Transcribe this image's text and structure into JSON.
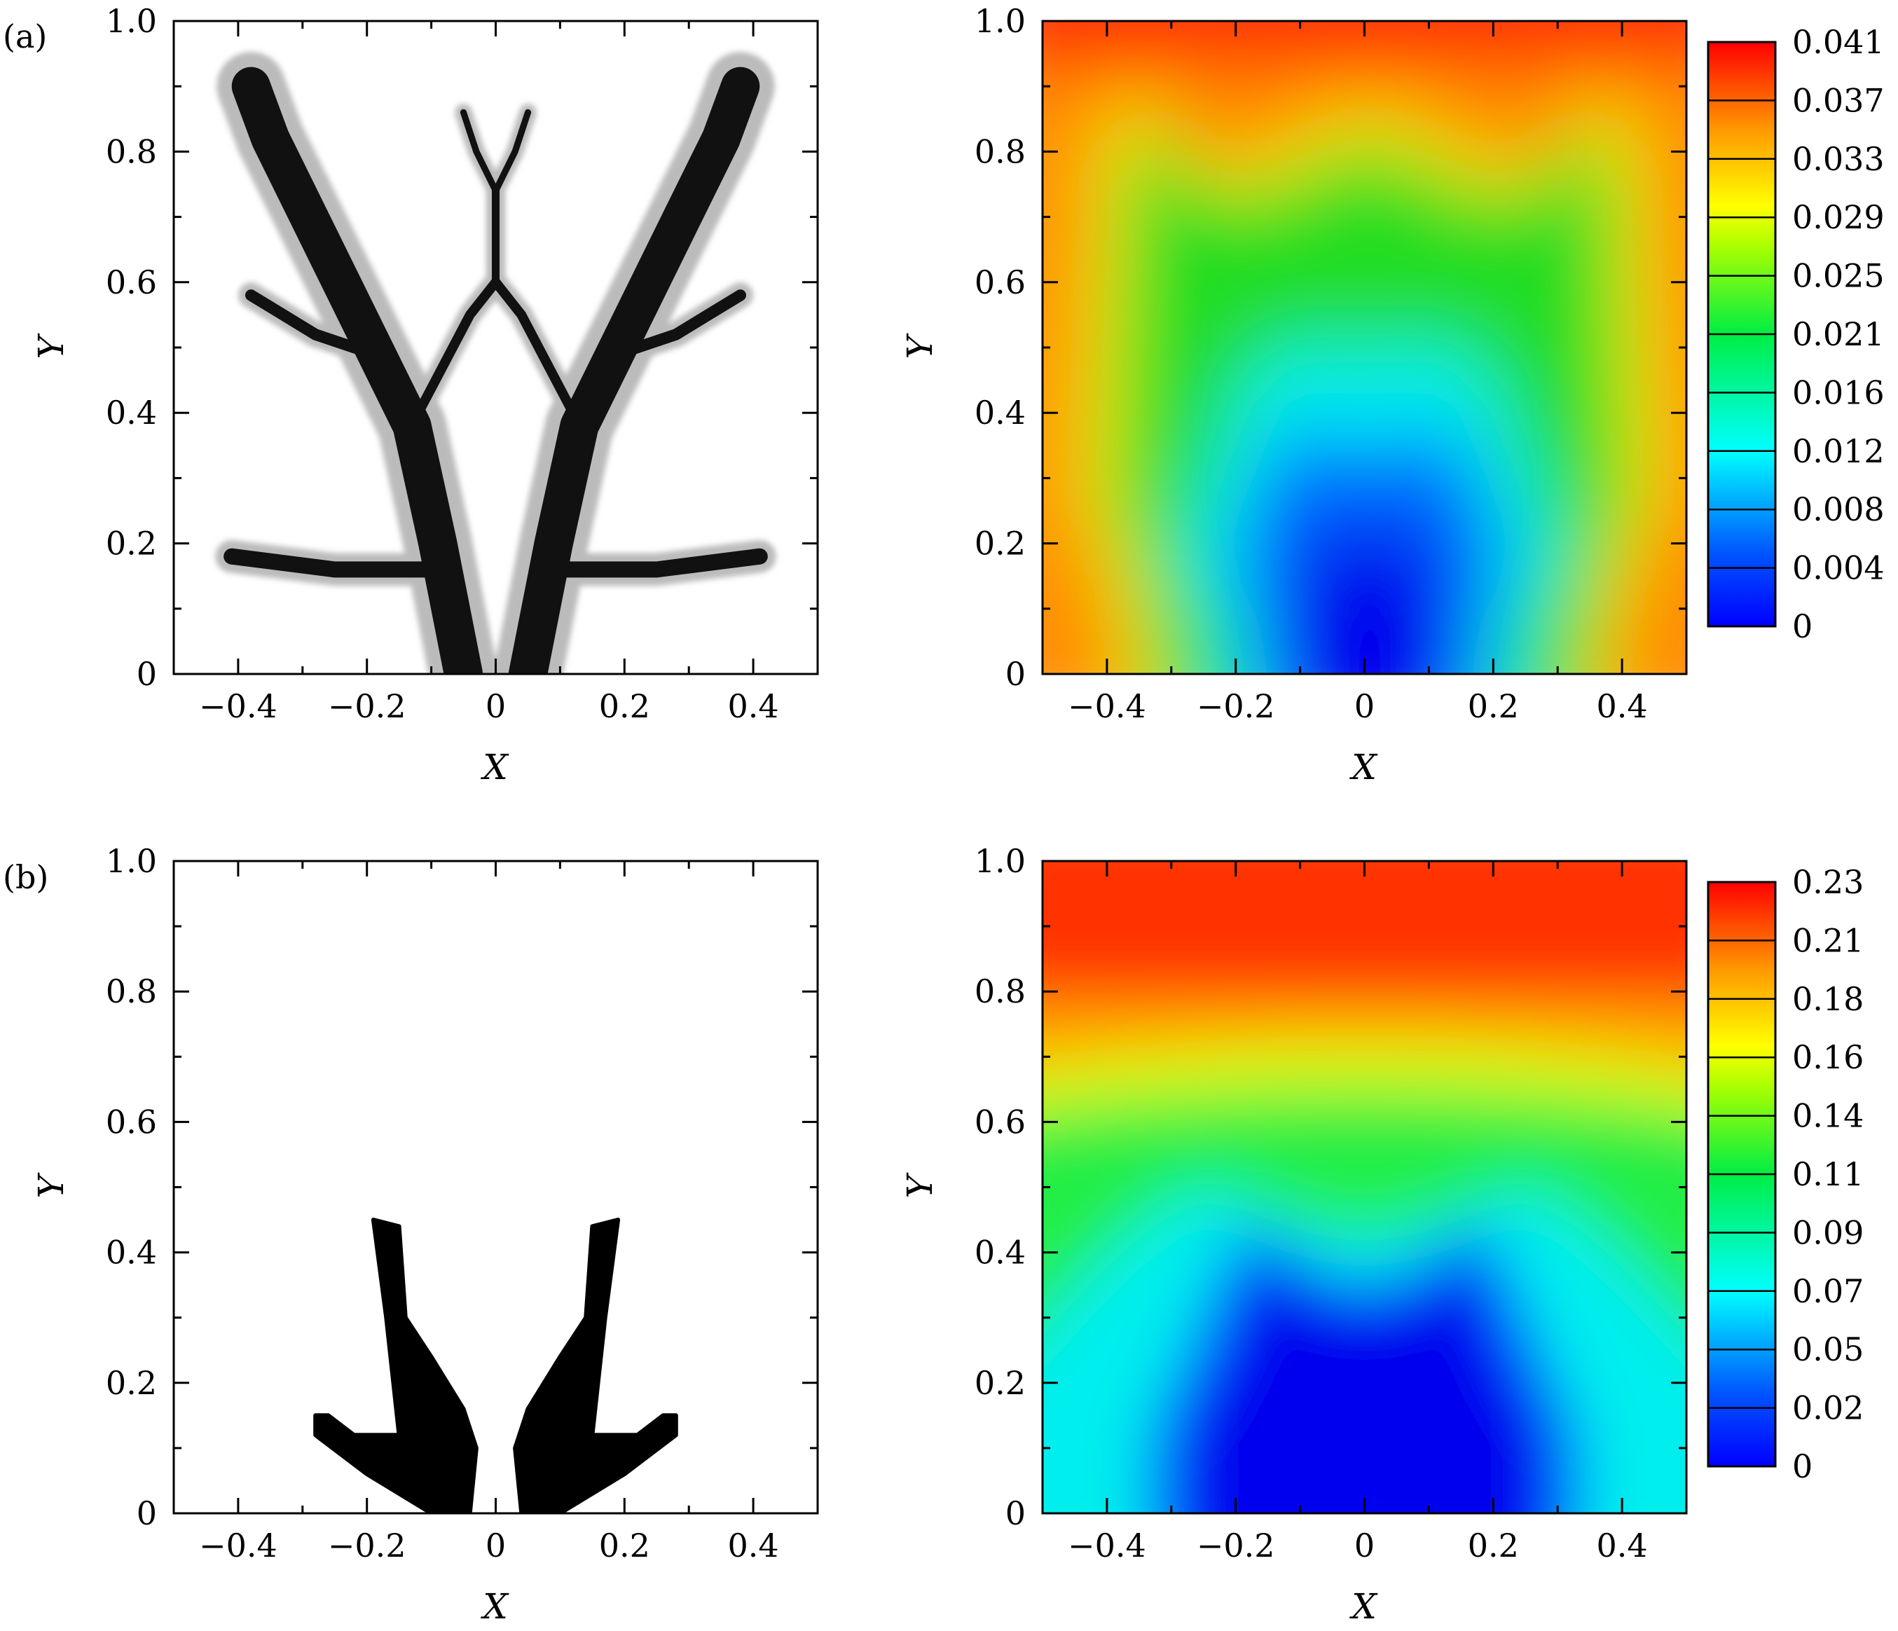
{
  "figure": {
    "panels": [
      {
        "label": "(a)"
      },
      {
        "label": "(b)"
      }
    ]
  },
  "chart_data": [
    {
      "type": "heatmap",
      "panel": "(a)",
      "subplot": "density",
      "xlabel": "X",
      "ylabel": "Y",
      "xlim": [
        -0.5,
        0.5
      ],
      "ylim": [
        0,
        1.0
      ],
      "xticks": [
        "−0.4",
        "−0.2",
        "0",
        "0.2",
        "0.4"
      ],
      "xtick_values": [
        -0.4,
        -0.2,
        0,
        0.2,
        0.4
      ],
      "yticks": [
        "0",
        "0.2",
        "0.4",
        "0.6",
        "0.8",
        "1.0"
      ],
      "ytick_values": [
        0,
        0.2,
        0.4,
        0.6,
        0.8,
        1.0
      ],
      "colormap": "grayscale (white = void, black = solid material)",
      "structure": [
        {
          "name": "left trunk",
          "points": [
            [
              -0.05,
              0
            ],
            [
              -0.09,
              0.2
            ],
            [
              -0.13,
              0.38
            ],
            [
              -0.2,
              0.52
            ],
            [
              -0.29,
              0.7
            ],
            [
              -0.35,
              0.82
            ],
            [
              -0.38,
              0.9
            ]
          ],
          "width": 0.06
        },
        {
          "name": "right trunk",
          "points": [
            [
              0.05,
              0
            ],
            [
              0.09,
              0.2
            ],
            [
              0.13,
              0.38
            ],
            [
              0.2,
              0.52
            ],
            [
              0.29,
              0.7
            ],
            [
              0.35,
              0.82
            ],
            [
              0.38,
              0.9
            ]
          ],
          "width": 0.06
        },
        {
          "name": "left lower branch",
          "points": [
            [
              -0.09,
              0.16
            ],
            [
              -0.25,
              0.16
            ],
            [
              -0.41,
              0.18
            ]
          ],
          "width": 0.025
        },
        {
          "name": "right lower branch",
          "points": [
            [
              0.09,
              0.16
            ],
            [
              0.25,
              0.16
            ],
            [
              0.41,
              0.18
            ]
          ],
          "width": 0.025
        },
        {
          "name": "left upper branch",
          "points": [
            [
              -0.19,
              0.49
            ],
            [
              -0.28,
              0.52
            ],
            [
              -0.38,
              0.58
            ]
          ],
          "width": 0.018
        },
        {
          "name": "right upper branch",
          "points": [
            [
              0.19,
              0.49
            ],
            [
              0.28,
              0.52
            ],
            [
              0.38,
              0.58
            ]
          ],
          "width": 0.018
        },
        {
          "name": "left inner branch",
          "points": [
            [
              -0.12,
              0.4
            ],
            [
              -0.04,
              0.55
            ],
            [
              0,
              0.6
            ]
          ],
          "width": 0.015
        },
        {
          "name": "right inner branch",
          "points": [
            [
              0.12,
              0.4
            ],
            [
              0.04,
              0.55
            ],
            [
              0,
              0.6
            ]
          ],
          "width": 0.015
        },
        {
          "name": "central stem",
          "points": [
            [
              0,
              0.6
            ],
            [
              0,
              0.74
            ]
          ],
          "width": 0.012
        },
        {
          "name": "top left twig",
          "points": [
            [
              0,
              0.74
            ],
            [
              -0.03,
              0.8
            ],
            [
              -0.05,
              0.86
            ]
          ],
          "width": 0.01
        },
        {
          "name": "top right twig",
          "points": [
            [
              0,
              0.74
            ],
            [
              0.03,
              0.8
            ],
            [
              0.05,
              0.86
            ]
          ],
          "width": 0.01
        }
      ]
    },
    {
      "type": "heatmap",
      "panel": "(a)",
      "subplot": "field",
      "xlabel": "X",
      "ylabel": "Y",
      "xlim": [
        -0.5,
        0.5
      ],
      "ylim": [
        0,
        1.0
      ],
      "xticks": [
        "−0.4",
        "−0.2",
        "0",
        "0.2",
        "0.4"
      ],
      "xtick_values": [
        -0.4,
        -0.2,
        0,
        0.2,
        0.4
      ],
      "yticks": [
        "0",
        "0.2",
        "0.4",
        "0.6",
        "0.8",
        "1.0"
      ],
      "ytick_values": [
        0,
        0.2,
        0.4,
        0.6,
        0.8,
        1.0
      ],
      "colormap": "jet",
      "colorbar": {
        "ticks": [
          "0.041",
          "0.037",
          "0.033",
          "0.029",
          "0.025",
          "0.021",
          "0.016",
          "0.012",
          "0.008",
          "0.004",
          "0"
        ],
        "min": 0,
        "max": 0.041
      },
      "field_description": "minimum near bottom centre and around the tree branches, maximum along top edge",
      "values_normalized": {
        "centre_bottom": 0.0,
        "lower_branch_region": 0.25,
        "mid_interior": 0.45,
        "upper_interior": 0.55,
        "side_edges": 0.78,
        "top_edge": 1.0
      }
    },
    {
      "type": "heatmap",
      "panel": "(b)",
      "subplot": "density",
      "xlabel": "X",
      "ylabel": "Y",
      "xlim": [
        -0.5,
        0.5
      ],
      "ylim": [
        0,
        1.0
      ],
      "xticks": [
        "−0.4",
        "−0.2",
        "0",
        "0.2",
        "0.4"
      ],
      "xtick_values": [
        -0.4,
        -0.2,
        0,
        0.2,
        0.4
      ],
      "yticks": [
        "0",
        "0.2",
        "0.4",
        "0.6",
        "0.8",
        "1.0"
      ],
      "ytick_values": [
        0,
        0.2,
        0.4,
        0.6,
        0.8,
        1.0
      ],
      "colormap": "binary (white = void, black = solid material)",
      "structure": [
        {
          "name": "left body",
          "polygon": [
            [
              -0.1,
              0
            ],
            [
              -0.04,
              0
            ],
            [
              -0.03,
              0.1
            ],
            [
              -0.05,
              0.16
            ],
            [
              -0.1,
              0.24
            ],
            [
              -0.14,
              0.3
            ],
            [
              -0.15,
              0.44
            ],
            [
              -0.19,
              0.45
            ],
            [
              -0.17,
              0.3
            ],
            [
              -0.15,
              0.12
            ],
            [
              -0.22,
              0.12
            ],
            [
              -0.26,
              0.15
            ],
            [
              -0.28,
              0.15
            ],
            [
              -0.28,
              0.12
            ],
            [
              -0.2,
              0.06
            ]
          ]
        },
        {
          "name": "right body",
          "polygon": [
            [
              0.1,
              0
            ],
            [
              0.04,
              0
            ],
            [
              0.03,
              0.1
            ],
            [
              0.05,
              0.16
            ],
            [
              0.1,
              0.24
            ],
            [
              0.14,
              0.3
            ],
            [
              0.15,
              0.44
            ],
            [
              0.19,
              0.45
            ],
            [
              0.17,
              0.3
            ],
            [
              0.15,
              0.12
            ],
            [
              0.22,
              0.12
            ],
            [
              0.26,
              0.15
            ],
            [
              0.28,
              0.15
            ],
            [
              0.28,
              0.12
            ],
            [
              0.2,
              0.06
            ]
          ]
        }
      ]
    },
    {
      "type": "heatmap",
      "panel": "(b)",
      "subplot": "field",
      "xlabel": "X",
      "ylabel": "Y",
      "xlim": [
        -0.5,
        0.5
      ],
      "ylim": [
        0,
        1.0
      ],
      "xticks": [
        "−0.4",
        "−0.2",
        "0",
        "0.2",
        "0.4"
      ],
      "xtick_values": [
        -0.4,
        -0.2,
        0,
        0.2,
        0.4
      ],
      "yticks": [
        "0",
        "0.2",
        "0.4",
        "0.6",
        "0.8",
        "1.0"
      ],
      "ytick_values": [
        0,
        0.2,
        0.4,
        0.6,
        0.8,
        1.0
      ],
      "colormap": "jet",
      "colorbar": {
        "ticks": [
          "0.23",
          "0.21",
          "0.18",
          "0.16",
          "0.14",
          "0.11",
          "0.09",
          "0.07",
          "0.05",
          "0.02",
          "0"
        ],
        "min": 0,
        "max": 0.23
      },
      "field_description": "minimum inside the lower solid region, increasing smoothly toward the top edge",
      "values_normalized": {
        "lower_region": 0.0,
        "around_solid": 0.3,
        "middle_band": 0.55,
        "y_0.65": 0.7,
        "top_edge": 1.0
      }
    }
  ]
}
